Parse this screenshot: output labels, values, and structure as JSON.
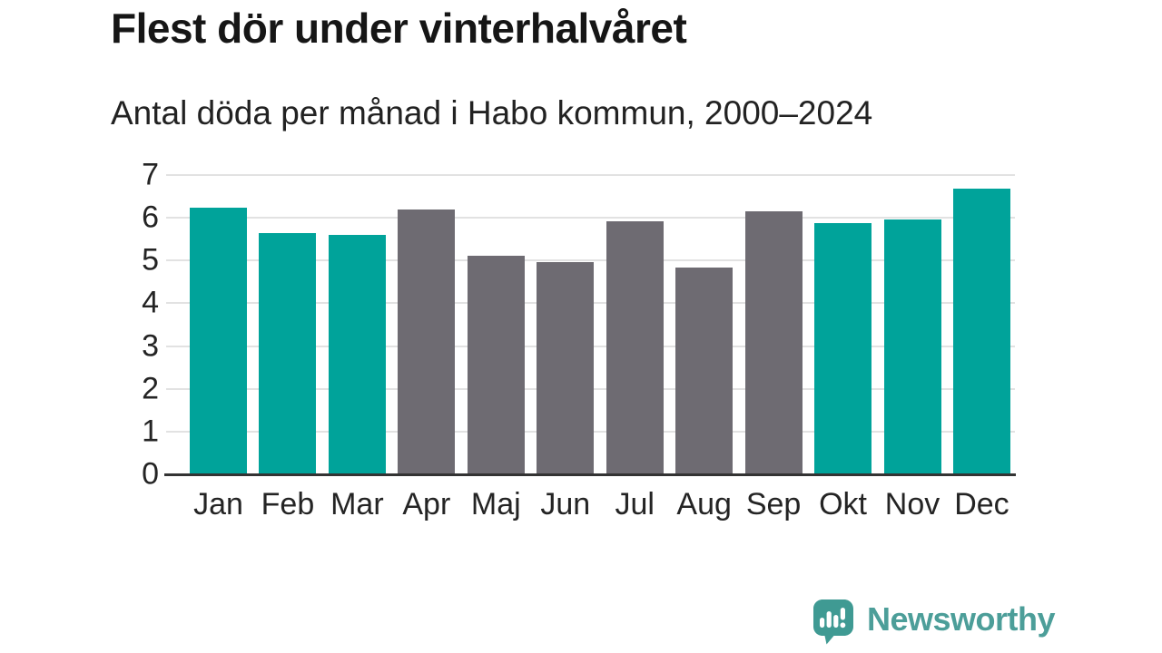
{
  "title": "Flest dör under vinterhalvåret",
  "subtitle": "Antal döda per månad i Habo kommun, 2000–2024",
  "chart_data": {
    "type": "bar",
    "title": "Flest dör under vinterhalvåret",
    "subtitle": "Antal döda per månad i Habo kommun, 2000–2024",
    "categories": [
      "Jan",
      "Feb",
      "Mar",
      "Apr",
      "Maj",
      "Jun",
      "Jul",
      "Aug",
      "Sep",
      "Okt",
      "Nov",
      "Dec"
    ],
    "values": [
      6.24,
      5.64,
      5.6,
      6.2,
      5.12,
      4.96,
      5.92,
      4.84,
      6.16,
      5.88,
      5.96,
      6.68
    ],
    "bar_colors": [
      "teal",
      "teal",
      "teal",
      "gray",
      "gray",
      "gray",
      "gray",
      "gray",
      "gray",
      "teal",
      "teal",
      "teal"
    ],
    "colors": {
      "teal": "#00a39a",
      "gray": "#6e6b72"
    },
    "xlabel": "",
    "ylabel": "",
    "ylim": [
      0,
      7
    ],
    "yticks": [
      0,
      1,
      2,
      3,
      4,
      5,
      6,
      7
    ],
    "grid": true,
    "legend": false,
    "color_meaning": "teal = winter half-year months, gray = summer half-year months"
  },
  "branding": {
    "logo_text": "Newsworthy",
    "logo_text_color": "#4c9e99",
    "logo_bubble_color": "#3f9a93"
  }
}
